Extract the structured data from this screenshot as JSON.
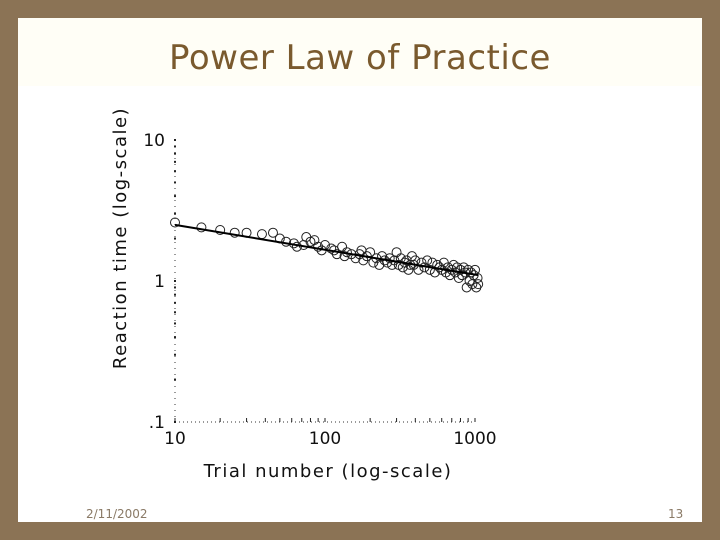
{
  "slide": {
    "title": "Power Law of Practice",
    "date": "2/11/2002",
    "page_number": "13"
  },
  "chart_data": {
    "type": "scatter",
    "title": "",
    "xlabel": "Trial number (log-scale)",
    "ylabel": "Reaction time (log-scale)",
    "x_scale": "log",
    "y_scale": "log",
    "xlim": [
      10,
      1000
    ],
    "ylim": [
      0.1,
      10
    ],
    "x_ticks": [
      {
        "value": 10,
        "label": "10"
      },
      {
        "value": 100,
        "label": "100"
      },
      {
        "value": 1000,
        "label": "1000"
      }
    ],
    "y_ticks": [
      {
        "value": 10,
        "label": "10"
      },
      {
        "value": 1,
        "label": "1"
      },
      {
        "value": 0.1,
        "label": ".1"
      }
    ],
    "grid": false,
    "points": [
      {
        "x": 10,
        "y": 2.6
      },
      {
        "x": 15,
        "y": 2.4
      },
      {
        "x": 20,
        "y": 2.3
      },
      {
        "x": 25,
        "y": 2.2
      },
      {
        "x": 30,
        "y": 2.2
      },
      {
        "x": 38,
        "y": 2.15
      },
      {
        "x": 45,
        "y": 2.2
      },
      {
        "x": 50,
        "y": 2.0
      },
      {
        "x": 55,
        "y": 1.9
      },
      {
        "x": 62,
        "y": 1.85
      },
      {
        "x": 65,
        "y": 1.75
      },
      {
        "x": 72,
        "y": 1.8
      },
      {
        "x": 75,
        "y": 2.05
      },
      {
        "x": 80,
        "y": 1.9
      },
      {
        "x": 85,
        "y": 1.95
      },
      {
        "x": 90,
        "y": 1.75
      },
      {
        "x": 95,
        "y": 1.65
      },
      {
        "x": 100,
        "y": 1.8
      },
      {
        "x": 110,
        "y": 1.7
      },
      {
        "x": 115,
        "y": 1.65
      },
      {
        "x": 120,
        "y": 1.55
      },
      {
        "x": 130,
        "y": 1.75
      },
      {
        "x": 135,
        "y": 1.5
      },
      {
        "x": 140,
        "y": 1.6
      },
      {
        "x": 150,
        "y": 1.55
      },
      {
        "x": 160,
        "y": 1.45
      },
      {
        "x": 170,
        "y": 1.55
      },
      {
        "x": 175,
        "y": 1.65
      },
      {
        "x": 180,
        "y": 1.4
      },
      {
        "x": 190,
        "y": 1.5
      },
      {
        "x": 200,
        "y": 1.6
      },
      {
        "x": 210,
        "y": 1.35
      },
      {
        "x": 220,
        "y": 1.45
      },
      {
        "x": 230,
        "y": 1.3
      },
      {
        "x": 240,
        "y": 1.5
      },
      {
        "x": 250,
        "y": 1.4
      },
      {
        "x": 260,
        "y": 1.35
      },
      {
        "x": 270,
        "y": 1.45
      },
      {
        "x": 280,
        "y": 1.3
      },
      {
        "x": 290,
        "y": 1.4
      },
      {
        "x": 300,
        "y": 1.6
      },
      {
        "x": 310,
        "y": 1.3
      },
      {
        "x": 320,
        "y": 1.45
      },
      {
        "x": 330,
        "y": 1.25
      },
      {
        "x": 340,
        "y": 1.35
      },
      {
        "x": 350,
        "y": 1.4
      },
      {
        "x": 360,
        "y": 1.2
      },
      {
        "x": 370,
        "y": 1.3
      },
      {
        "x": 380,
        "y": 1.5
      },
      {
        "x": 390,
        "y": 1.3
      },
      {
        "x": 400,
        "y": 1.4
      },
      {
        "x": 420,
        "y": 1.2
      },
      {
        "x": 440,
        "y": 1.35
      },
      {
        "x": 460,
        "y": 1.25
      },
      {
        "x": 480,
        "y": 1.4
      },
      {
        "x": 500,
        "y": 1.2
      },
      {
        "x": 520,
        "y": 1.35
      },
      {
        "x": 540,
        "y": 1.15
      },
      {
        "x": 560,
        "y": 1.3
      },
      {
        "x": 580,
        "y": 1.25
      },
      {
        "x": 600,
        "y": 1.2
      },
      {
        "x": 620,
        "y": 1.35
      },
      {
        "x": 640,
        "y": 1.15
      },
      {
        "x": 660,
        "y": 1.25
      },
      {
        "x": 680,
        "y": 1.1
      },
      {
        "x": 700,
        "y": 1.2
      },
      {
        "x": 720,
        "y": 1.3
      },
      {
        "x": 740,
        "y": 1.15
      },
      {
        "x": 760,
        "y": 1.25
      },
      {
        "x": 780,
        "y": 1.05
      },
      {
        "x": 800,
        "y": 1.2
      },
      {
        "x": 820,
        "y": 1.1
      },
      {
        "x": 840,
        "y": 1.25
      },
      {
        "x": 860,
        "y": 1.15
      },
      {
        "x": 880,
        "y": 0.9
      },
      {
        "x": 900,
        "y": 1.2
      },
      {
        "x": 920,
        "y": 1.0
      },
      {
        "x": 940,
        "y": 1.15
      },
      {
        "x": 960,
        "y": 0.95
      },
      {
        "x": 980,
        "y": 1.1
      },
      {
        "x": 1000,
        "y": 1.2
      },
      {
        "x": 1020,
        "y": 0.9
      },
      {
        "x": 1040,
        "y": 1.05
      },
      {
        "x": 1050,
        "y": 0.95
      }
    ],
    "fit_line": {
      "x": [
        10,
        1050
      ],
      "y": [
        2.5,
        1.1
      ]
    }
  }
}
